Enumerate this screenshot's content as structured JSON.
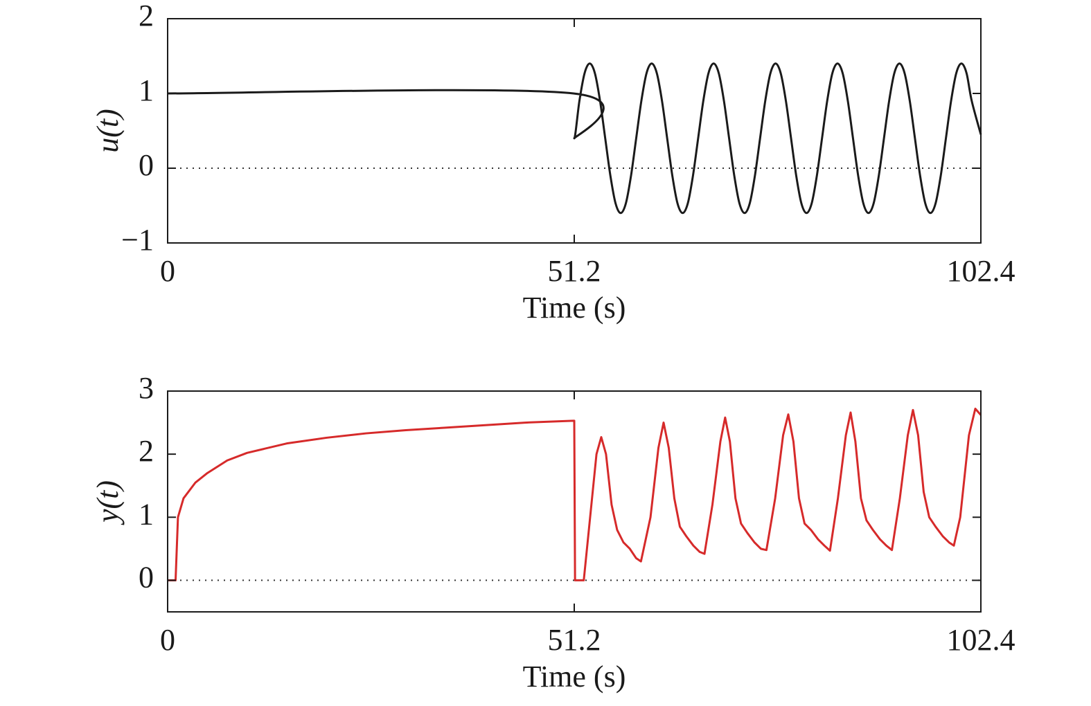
{
  "chart_data": [
    {
      "type": "line",
      "ylabel": "u(t)",
      "xlabel": "Time (s)",
      "xlim": [
        0,
        102.4
      ],
      "xticks": [
        0,
        51.2,
        102.4
      ],
      "ylim": [
        -1,
        2
      ],
      "yticks": [
        {
          "value": -1,
          "label": "−1"
        },
        0,
        1,
        2
      ],
      "reference_line": 0,
      "series": [
        {
          "color": "#1a1a1a",
          "x": [
            0,
            51.1,
            51.2,
            51.85,
            52.5,
            53.15,
            53.8,
            54.45,
            55.1,
            55.75,
            56.4,
            57.05,
            57.7,
            58.35,
            59.0,
            59.65,
            60.3,
            60.95,
            61.6,
            62.25,
            62.9,
            63.55,
            64.2,
            64.85,
            65.5,
            66.15,
            66.8,
            67.45,
            68.1,
            68.75,
            69.4,
            70.05,
            70.7,
            71.35,
            72.0,
            72.65,
            73.3,
            73.95,
            74.6,
            75.25,
            75.9,
            76.55,
            77.2,
            77.85,
            78.5,
            79.15,
            79.8,
            80.45,
            81.1,
            81.75,
            82.4,
            83.05,
            83.7,
            84.35,
            85.0,
            85.65,
            86.3,
            86.95,
            87.6,
            88.25,
            88.9,
            89.55,
            90.2,
            90.85,
            91.5,
            92.15,
            92.8,
            93.45,
            94.1,
            94.75,
            95.4,
            96.05,
            96.7,
            97.35,
            98.0,
            98.65,
            99.3,
            99.95,
            100.6,
            101.25,
            102.4
          ],
          "values": [
            1,
            1,
            0.4,
            0.9,
            1.27,
            1.4,
            1.27,
            0.9,
            0.4,
            -0.1,
            -0.47,
            -0.6,
            -0.47,
            -0.1,
            0.4,
            0.9,
            1.27,
            1.4,
            1.27,
            0.9,
            0.4,
            -0.1,
            -0.47,
            -0.6,
            -0.47,
            -0.1,
            0.4,
            0.9,
            1.27,
            1.4,
            1.27,
            0.9,
            0.4,
            -0.1,
            -0.47,
            -0.6,
            -0.47,
            -0.1,
            0.4,
            0.9,
            1.27,
            1.4,
            1.27,
            0.9,
            0.4,
            -0.1,
            -0.47,
            -0.6,
            -0.47,
            -0.1,
            0.4,
            0.9,
            1.27,
            1.4,
            1.27,
            0.9,
            0.4,
            -0.1,
            -0.47,
            -0.6,
            -0.47,
            -0.1,
            0.4,
            0.9,
            1.27,
            1.4,
            1.27,
            0.9,
            0.4,
            -0.1,
            -0.47,
            -0.6,
            -0.47,
            -0.1,
            0.4,
            0.9,
            1.27,
            1.4,
            1.27,
            0.9,
            0.45
          ]
        }
      ]
    },
    {
      "type": "line",
      "ylabel": "y(t)",
      "xlabel": "Time (s)",
      "xlim": [
        0,
        102.4
      ],
      "xticks": [
        0,
        51.2,
        102.4
      ],
      "ylim": [
        -0.5,
        3
      ],
      "yticks": [
        0,
        1,
        2,
        3
      ],
      "reference_line": 0,
      "series": [
        {
          "color": "#d62a2a",
          "x": [
            0,
            1.0,
            1.3,
            2.0,
            3.5,
            5,
            7.5,
            10,
            15,
            20,
            25,
            30,
            35,
            40,
            45,
            51.1,
            51.2,
            51.3,
            52.4,
            53.2,
            54.0,
            54.6,
            55.2,
            55.9,
            56.6,
            57.4,
            58.2,
            59.0,
            59.6,
            60.8,
            61.8,
            62.45,
            63.1,
            63.8,
            64.5,
            65.3,
            66.2,
            67.0,
            67.6,
            68.6,
            69.6,
            70.2,
            70.8,
            71.5,
            72.2,
            73.0,
            73.9,
            74.7,
            75.4,
            76.5,
            77.5,
            78.15,
            78.8,
            79.5,
            80.2,
            81.0,
            81.9,
            82.7,
            83.4,
            84.4,
            85.4,
            86.0,
            86.6,
            87.3,
            88.0,
            88.8,
            89.7,
            90.5,
            91.2,
            92.2,
            93.2,
            93.85,
            94.5,
            95.2,
            95.9,
            96.7,
            97.6,
            98.4,
            99.0,
            99.8,
            100.9,
            101.7,
            102.4
          ],
          "values": [
            0,
            0,
            1.0,
            1.3,
            1.55,
            1.7,
            1.9,
            2.02,
            2.17,
            2.26,
            2.33,
            2.38,
            2.42,
            2.46,
            2.5,
            2.53,
            2.53,
            0,
            0,
            1.0,
            2.0,
            2.27,
            2.0,
            1.2,
            0.8,
            0.6,
            0.5,
            0.35,
            0.3,
            1.0,
            2.1,
            2.5,
            2.1,
            1.3,
            0.85,
            0.7,
            0.55,
            0.45,
            0.42,
            1.2,
            2.2,
            2.58,
            2.2,
            1.3,
            0.9,
            0.75,
            0.6,
            0.5,
            0.48,
            1.3,
            2.3,
            2.63,
            2.2,
            1.3,
            0.9,
            0.8,
            0.65,
            0.55,
            0.47,
            1.3,
            2.3,
            2.66,
            2.2,
            1.3,
            0.95,
            0.8,
            0.65,
            0.55,
            0.48,
            1.3,
            2.3,
            2.7,
            2.3,
            1.4,
            1.0,
            0.85,
            0.7,
            0.6,
            0.55,
            1.0,
            2.3,
            2.72,
            2.62
          ]
        }
      ]
    }
  ]
}
